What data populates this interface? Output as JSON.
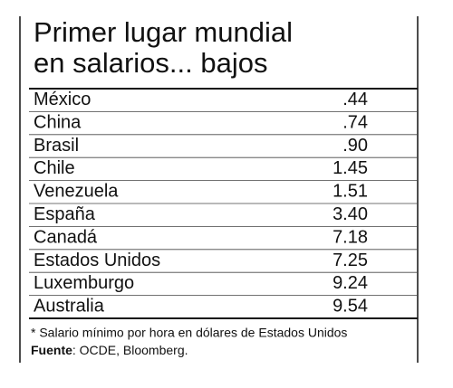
{
  "header": {
    "title_lines": [
      "Primer lugar mundial",
      "en salarios... bajos"
    ]
  },
  "table": {
    "rows": [
      [
        "México",
        ".44"
      ],
      [
        "China",
        ".74"
      ],
      [
        "Brasil",
        ".90"
      ],
      [
        "Chile",
        "1.45"
      ],
      [
        "Venezuela",
        "1.51"
      ],
      [
        "España",
        "3.40"
      ],
      [
        "Canadá",
        "7.18"
      ],
      [
        "Estados Unidos",
        "7.25"
      ],
      [
        "Luxemburgo",
        "9.24"
      ],
      [
        "Australia",
        "9.54"
      ]
    ]
  },
  "footnote": "* Salario mínimo por hora en dólares de Estados Unidos",
  "source": {
    "label": "Fuente",
    "text": ": OCDE, Bloomberg."
  }
}
